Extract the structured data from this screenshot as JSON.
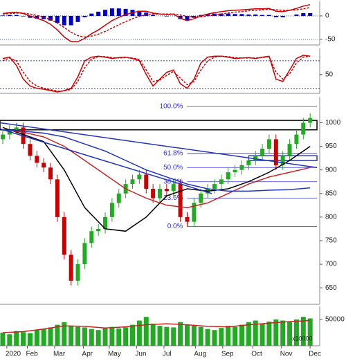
{
  "chart_data": [
    {
      "type": "line",
      "x": [
        0,
        5,
        10,
        15,
        20,
        25,
        30,
        35,
        40,
        45,
        50,
        55,
        60,
        65,
        70,
        75,
        80,
        85,
        90,
        95,
        100,
        105,
        110,
        115,
        120,
        125,
        130,
        135,
        140,
        145,
        150,
        155,
        160,
        165,
        170,
        175,
        180,
        185,
        190,
        195,
        200,
        205,
        210,
        215,
        220,
        225
      ],
      "xlim": [
        -2,
        232
      ],
      "ylim": [
        -62,
        31
      ],
      "yticks": [
        0,
        -50
      ],
      "grid": true,
      "series": [
        {
          "color": "#0000cc",
          "style": "bar",
          "values": [
            1,
            2,
            2,
            -1,
            -4,
            -6,
            -7,
            -10,
            -15,
            -20,
            -20,
            -13,
            -3,
            5,
            9,
            13,
            16,
            16,
            15,
            13,
            11,
            7,
            2,
            0,
            -1,
            0,
            -7,
            -9,
            -4,
            2,
            4,
            5,
            5,
            5,
            4,
            4,
            3,
            3,
            2,
            2,
            -3,
            -3,
            0,
            3,
            6,
            6
          ]
        },
        {
          "color": "#cc0000",
          "style": "solid",
          "values": [
            5,
            7,
            8,
            5,
            0,
            -5,
            -10,
            -18,
            -30,
            -45,
            -55,
            -55,
            -48,
            -38,
            -30,
            -20,
            -10,
            -3,
            3,
            7,
            10,
            10,
            6,
            4,
            3,
            4,
            -5,
            -10,
            -6,
            0,
            4,
            7,
            9,
            11,
            12,
            13,
            14,
            15,
            15,
            16,
            10,
            9,
            12,
            16,
            21,
            24
          ]
        },
        {
          "color": "#cc0000",
          "style": "dashed",
          "values": [
            4,
            5,
            6,
            6,
            4,
            1,
            -3,
            -8,
            -15,
            -25,
            -35,
            -42,
            -45,
            -43,
            -39,
            -33,
            -26,
            -19,
            -12,
            -6,
            -1,
            3,
            4,
            4,
            4,
            4,
            2,
            -1,
            -2,
            -2,
            0,
            2,
            4,
            6,
            8,
            9,
            11,
            12,
            13,
            14,
            13,
            12,
            12,
            13,
            15,
            18
          ]
        }
      ]
    },
    {
      "type": "line",
      "x": [
        0,
        5,
        10,
        15,
        20,
        25,
        30,
        35,
        40,
        45,
        50,
        55,
        60,
        65,
        70,
        75,
        80,
        85,
        90,
        95,
        100,
        105,
        110,
        115,
        120,
        125,
        130,
        135,
        140,
        145,
        150,
        155,
        160,
        165,
        170,
        175,
        180,
        185,
        190,
        195,
        200,
        205,
        210,
        215,
        220,
        225
      ],
      "xlim": [
        -2,
        232
      ],
      "ylim": [
        9,
        107
      ],
      "yticks": [
        50
      ],
      "grid": false,
      "levels": [
        80,
        20
      ],
      "series": [
        {
          "color": "#cc0000",
          "style": "solid",
          "values": [
            85,
            88,
            70,
            40,
            25,
            20,
            18,
            15,
            12,
            15,
            20,
            45,
            80,
            88,
            90,
            88,
            85,
            87,
            88,
            85,
            80,
            50,
            25,
            40,
            55,
            60,
            30,
            20,
            40,
            75,
            88,
            90,
            90,
            88,
            85,
            86,
            87,
            85,
            88,
            90,
            40,
            35,
            60,
            85,
            92,
            90
          ]
        },
        {
          "color": "#cc0000",
          "style": "dashed",
          "values": [
            80,
            86,
            80,
            55,
            35,
            25,
            20,
            17,
            14,
            14,
            18,
            35,
            65,
            84,
            89,
            89,
            87,
            86,
            87,
            86,
            83,
            60,
            35,
            38,
            48,
            57,
            42,
            28,
            35,
            60,
            80,
            88,
            90,
            89,
            87,
            86,
            86,
            86,
            87,
            89,
            55,
            40,
            52,
            75,
            88,
            90
          ]
        }
      ]
    },
    {
      "type": "candlestick",
      "x": [
        0,
        5,
        10,
        15,
        20,
        25,
        30,
        35,
        40,
        45,
        50,
        55,
        60,
        65,
        70,
        75,
        80,
        85,
        90,
        95,
        100,
        105,
        110,
        115,
        120,
        125,
        130,
        135,
        140,
        145,
        150,
        155,
        160,
        165,
        170,
        175,
        180,
        185,
        190,
        195,
        200,
        205,
        210,
        215,
        220,
        225
      ],
      "xlim": [
        -2,
        232
      ],
      "ylim": [
        615,
        1055
      ],
      "yticks": [
        1000,
        950,
        900,
        850,
        800,
        750,
        700,
        650
      ],
      "up_color": "#22aa22",
      "down_color": "#cc0000",
      "open": [
        965,
        975,
        985,
        990,
        955,
        930,
        915,
        905,
        880,
        800,
        720,
        665,
        700,
        745,
        770,
        775,
        800,
        830,
        850,
        870,
        880,
        890,
        860,
        840,
        860,
        855,
        870,
        800,
        790,
        830,
        850,
        860,
        870,
        880,
        895,
        900,
        910,
        920,
        930,
        945,
        965,
        910,
        930,
        955,
        975,
        1000
      ],
      "high": [
        985,
        995,
        1000,
        1000,
        965,
        940,
        925,
        915,
        890,
        810,
        730,
        710,
        755,
        780,
        785,
        810,
        840,
        860,
        880,
        890,
        900,
        900,
        870,
        870,
        870,
        880,
        880,
        810,
        840,
        860,
        870,
        880,
        890,
        905,
        910,
        920,
        930,
        940,
        955,
        975,
        975,
        940,
        965,
        985,
        1010,
        1020
      ],
      "low": [
        955,
        965,
        975,
        945,
        920,
        905,
        895,
        870,
        790,
        710,
        655,
        655,
        690,
        735,
        760,
        765,
        790,
        820,
        840,
        860,
        870,
        850,
        830,
        830,
        845,
        845,
        790,
        780,
        780,
        820,
        840,
        850,
        860,
        870,
        885,
        890,
        900,
        910,
        920,
        935,
        900,
        900,
        920,
        945,
        965,
        990
      ],
      "close": [
        975,
        985,
        990,
        955,
        930,
        915,
        905,
        880,
        800,
        720,
        665,
        700,
        745,
        770,
        775,
        800,
        830,
        850,
        870,
        880,
        890,
        860,
        840,
        860,
        855,
        870,
        800,
        790,
        830,
        850,
        860,
        870,
        880,
        895,
        900,
        910,
        920,
        930,
        945,
        965,
        910,
        930,
        955,
        975,
        1000,
        1010
      ],
      "lines": [
        {
          "color": "#000000",
          "x": [
            0,
            15,
            30,
            45,
            60,
            75,
            90,
            105,
            120,
            135,
            150,
            165,
            180,
            195,
            210,
            225
          ],
          "values": [
            990,
            975,
            960,
            900,
            820,
            775,
            770,
            800,
            845,
            860,
            855,
            860,
            875,
            895,
            920,
            950
          ]
        },
        {
          "color": "#cc2222",
          "x": [
            0,
            15,
            30,
            45,
            60,
            75,
            90,
            105,
            120,
            135,
            150,
            165,
            180,
            195,
            210,
            225
          ],
          "values": [
            985,
            980,
            970,
            950,
            920,
            890,
            860,
            840,
            825,
            820,
            830,
            850,
            870,
            885,
            895,
            905
          ]
        },
        {
          "color": "#2233bb",
          "x": [
            0,
            15,
            30,
            45,
            60,
            75,
            90,
            105,
            120,
            135,
            150,
            165,
            180,
            195,
            210,
            225
          ],
          "values": [
            985,
            982,
            978,
            970,
            955,
            940,
            920,
            900,
            885,
            870,
            860,
            855,
            855,
            857,
            858,
            862
          ]
        },
        {
          "color": "#2233bb",
          "x": [
            -2,
            230
          ],
          "values": [
            1000,
            905
          ]
        },
        {
          "color": "#2233bb",
          "x": [
            -2,
            153
          ],
          "values": [
            987,
            850
          ]
        }
      ],
      "zones": [
        {
          "color": "#000000",
          "x": [
            -2,
            230
          ],
          "y": [
            985,
            1005
          ]
        },
        {
          "color": "#2233bb",
          "x": [
            180,
            230
          ],
          "y": [
            920,
            930
          ]
        }
      ],
      "fib": {
        "color": "#3333cc",
        "x": [
          135,
          230
        ],
        "levels": [
          {
            "label": "100.0%",
            "value": 1035
          },
          {
            "label": "61.8%",
            "value": 935
          },
          {
            "label": "50.0%",
            "value": 905
          },
          {
            "label": "38.2%",
            "value": 875
          },
          {
            "label": "23.6%",
            "value": 840
          },
          {
            "label": "0.0%",
            "value": 780
          }
        ]
      }
    },
    {
      "type": "bar",
      "x": [
        0,
        5,
        10,
        15,
        20,
        25,
        30,
        35,
        40,
        45,
        50,
        55,
        60,
        65,
        70,
        75,
        80,
        85,
        90,
        95,
        100,
        105,
        110,
        115,
        120,
        125,
        130,
        135,
        140,
        145,
        150,
        155,
        160,
        165,
        170,
        175,
        180,
        185,
        190,
        195,
        200,
        205,
        210,
        215,
        220,
        225
      ],
      "xlim": [
        -2,
        232
      ],
      "ylim": [
        0,
        75000
      ],
      "yticks": [
        50000
      ],
      "color": "#22aa22",
      "unit_label": "x10000",
      "values": [
        25000,
        22000,
        28000,
        26000,
        24000,
        30000,
        32000,
        35000,
        40000,
        45000,
        38000,
        36000,
        35000,
        32000,
        30000,
        34000,
        36000,
        33000,
        35000,
        40000,
        48000,
        55000,
        42000,
        38000,
        36000,
        35000,
        45000,
        40000,
        38000,
        36000,
        32000,
        30000,
        34000,
        38000,
        36000,
        40000,
        45000,
        48000,
        42000,
        46000,
        50000,
        48000,
        45000,
        50000,
        55000,
        52000
      ],
      "ma_line": {
        "color": "#cc2222",
        "x": [
          0,
          15,
          30,
          45,
          60,
          75,
          90,
          105,
          120,
          135,
          150,
          165,
          180,
          195,
          210,
          225
        ],
        "values": [
          25000,
          27000,
          32000,
          38000,
          37000,
          34000,
          36000,
          40000,
          42000,
          40000,
          37000,
          36000,
          40000,
          43000,
          46000,
          48000
        ]
      },
      "xticks": [
        {
          "value": 3,
          "label": "2020"
        },
        {
          "value": 18,
          "label": "Feb"
        },
        {
          "value": 38,
          "label": "Mar"
        },
        {
          "value": 59,
          "label": "Apr"
        },
        {
          "value": 78,
          "label": "May"
        },
        {
          "value": 98,
          "label": "Jun"
        },
        {
          "value": 118,
          "label": "Jul"
        },
        {
          "value": 141,
          "label": "Aug"
        },
        {
          "value": 161,
          "label": "Sep"
        },
        {
          "value": 183,
          "label": "Oct"
        },
        {
          "value": 204,
          "label": "Nov"
        },
        {
          "value": 225,
          "label": "Dec"
        }
      ]
    }
  ]
}
